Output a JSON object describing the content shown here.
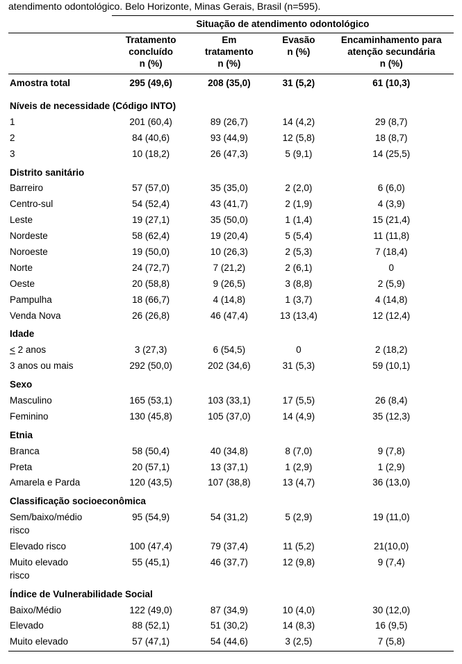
{
  "caption": "atendimento odontológico. Belo Horizonte, Minas Gerais, Brasil (n=595).",
  "group_header": "Situação de atendimento odontológico",
  "columns": {
    "label": "",
    "c1_top": "Tratamento",
    "c1_mid": "concluído",
    "c1_bot": "n (%)",
    "c2_top": "Em",
    "c2_mid": "tratamento",
    "c2_bot": "n (%)",
    "c3_top": "Evasão",
    "c3_mid": "n (%)",
    "c4_top": "Encaminhamento para",
    "c4_mid": "atenção secundária",
    "c4_bot": "n (%)"
  },
  "total": {
    "label": "Amostra total",
    "c1": "295 (49,6)",
    "c2": "208 (35,0)",
    "c3": "31 (5,2)",
    "c4": "61 (10,3)"
  },
  "sections": [
    {
      "title": "Níveis de necessidade (Código INTO)",
      "rows": [
        {
          "label": "1",
          "c1": "201 (60,4)",
          "c2": "89 (26,7)",
          "c3": "14 (4,2)",
          "c4": "29 (8,7)"
        },
        {
          "label": "2",
          "c1": "84 (40,6)",
          "c2": "93 (44,9)",
          "c3": "12 (5,8)",
          "c4": "18 (8,7)"
        },
        {
          "label": "3",
          "c1": "10 (18,2)",
          "c2": "26 (47,3)",
          "c3": "5 (9,1)",
          "c4": "14 (25,5)"
        }
      ]
    },
    {
      "title": "Distrito sanitário",
      "rows": [
        {
          "label": "Barreiro",
          "c1": "57 (57,0)",
          "c2": "35 (35,0)",
          "c3": "2 (2,0)",
          "c4": "6 (6,0)"
        },
        {
          "label": "Centro-sul",
          "c1": "54 (52,4)",
          "c2": "43 (41,7)",
          "c3": "2 (1,9)",
          "c4": "4 (3,9)"
        },
        {
          "label": "Leste",
          "c1": "19 (27,1)",
          "c2": "35 (50,0)",
          "c3": "1 (1,4)",
          "c4": "15 (21,4)"
        },
        {
          "label": "Nordeste",
          "c1": "58 (62,4)",
          "c2": "19 (20,4)",
          "c3": "5 (5,4)",
          "c4": "11 (11,8)"
        },
        {
          "label": "Noroeste",
          "c1": "19 (50,0)",
          "c2": "10 (26,3)",
          "c3": "2 (5,3)",
          "c4": "7 (18,4)"
        },
        {
          "label": "Norte",
          "c1": "24 (72,7)",
          "c2": "7 (21,2)",
          "c3": "2 (6,1)",
          "c4": "0"
        },
        {
          "label": "Oeste",
          "c1": "20 (58,8)",
          "c2": "9 (26,5)",
          "c3": "3 (8,8)",
          "c4": "2 (5,9)"
        },
        {
          "label": "Pampulha",
          "c1": "18 (66,7)",
          "c2": "4 (14,8)",
          "c3": "1 (3,7)",
          "c4": "4 (14,8)"
        },
        {
          "label": "Venda Nova",
          "c1": "26 (26,8)",
          "c2": "46 (47,4)",
          "c3": "13 (13,4)",
          "c4": "12 (12,4)"
        }
      ]
    },
    {
      "title": "Idade",
      "rows": [
        {
          "label_html": "<span class='underline-lt'>&lt;</span> 2 anos",
          "c1": "3 (27,3)",
          "c2": "6 (54,5)",
          "c3": "0",
          "c4": "2 (18,2)"
        },
        {
          "label": "3 anos ou mais",
          "c1": "292 (50,0)",
          "c2": "202 (34,6)",
          "c3": "31 (5,3)",
          "c4": "59 (10,1)"
        }
      ]
    },
    {
      "title": "Sexo",
      "rows": [
        {
          "label": "Masculino",
          "c1": "165 (53,1)",
          "c2": "103 (33,1)",
          "c3": "17 (5,5)",
          "c4": "26 (8,4)"
        },
        {
          "label": "Feminino",
          "c1": "130 (45,8)",
          "c2": "105 (37,0)",
          "c3": "14 (4,9)",
          "c4": "35 (12,3)"
        }
      ]
    },
    {
      "title": "Etnia",
      "rows": [
        {
          "label": "Branca",
          "c1": "58 (50,4)",
          "c2": "40 (34,8)",
          "c3": "8 (7,0)",
          "c4": "9 (7,8)"
        },
        {
          "label": "Preta",
          "c1": "20 (57,1)",
          "c2": "13 (37,1)",
          "c3": "1 (2,9)",
          "c4": "1 (2,9)"
        },
        {
          "label": "Amarela e Parda",
          "c1": "120 (43,5)",
          "c2": "107 (38,8)",
          "c3": "13 (4,7)",
          "c4": "36 (13,0)"
        }
      ]
    },
    {
      "title": "Classificação socioeconômica",
      "rows": [
        {
          "label_html": "Sem/baixo/médio<br>risco",
          "c1": "95 (54,9)",
          "c2": "54 (31,2)",
          "c3": "5 (2,9)",
          "c4": "19 (11,0)"
        },
        {
          "label": "Elevado risco",
          "c1": "100 (47,4)",
          "c2": "79 (37,4)",
          "c3": "11 (5,2)",
          "c4": "21(10,0)"
        },
        {
          "label_html": "Muito elevado<br>risco",
          "c1": "55 (45,1)",
          "c2": "46 (37,7)",
          "c3": "12 (9,8)",
          "c4": "9 (7,4)"
        }
      ]
    },
    {
      "title": "Índice de Vulnerabilidade Social",
      "rows": [
        {
          "label": "Baixo/Médio",
          "c1": "122 (49,0)",
          "c2": "87 (34,9)",
          "c3": "10 (4,0)",
          "c4": "30 (12,0)"
        },
        {
          "label": "Elevado",
          "c1": "88 (52,1)",
          "c2": "51 (30,2)",
          "c3": "14 (8,3)",
          "c4": "16 (9,5)"
        },
        {
          "label": "Muito elevado",
          "c1": "57 (47,1)",
          "c2": "54 (44,6)",
          "c3": "3 (2,5)",
          "c4": "7 (5,8)"
        }
      ]
    }
  ]
}
